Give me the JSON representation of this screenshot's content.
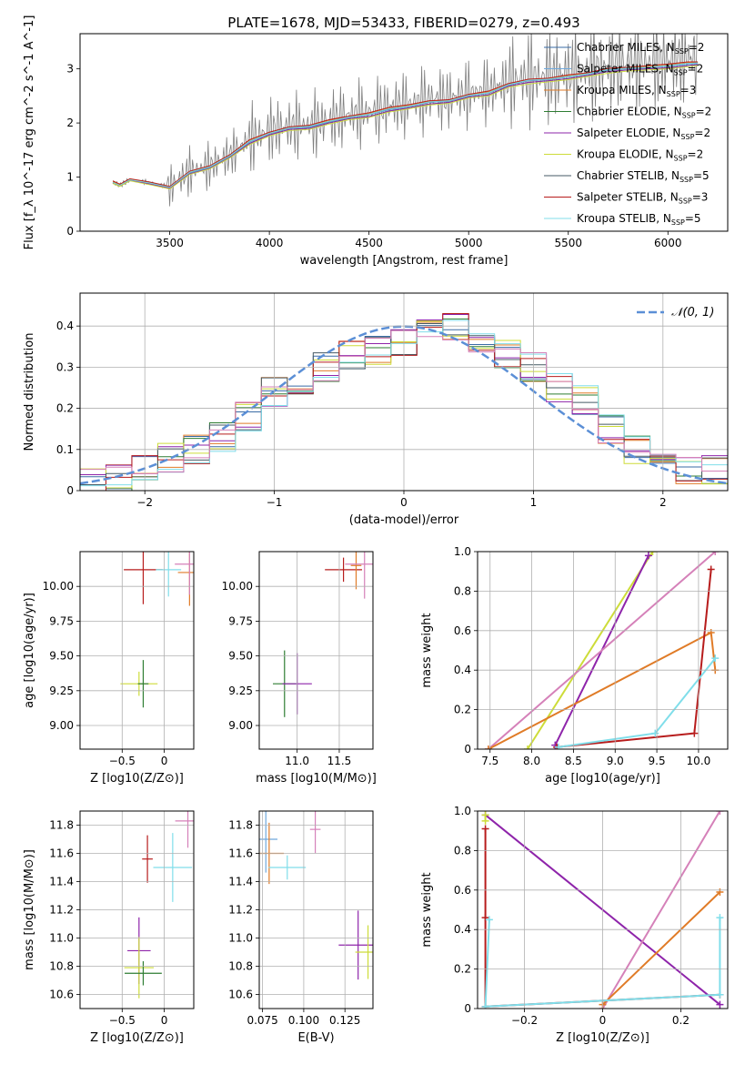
{
  "chart_data": [
    {
      "id": "spectrum",
      "type": "line",
      "title": "PLATE=1678, MJD=53433, FIBERID=0279, z=0.493",
      "xlabel": "wavelength [Angstrom, rest frame]",
      "ylabel": "Flux [f_λ 10^-17 erg cm^-2 s^-1 A^-1]",
      "xlim": [
        3050,
        6300
      ],
      "ylim": [
        0,
        3.65
      ],
      "xticks": [
        3500,
        4000,
        4500,
        5000,
        5500,
        6000
      ],
      "yticks": [
        0,
        1,
        2,
        3
      ],
      "grid": false,
      "legend_position": "top-right",
      "data_color": "#808080",
      "x": [
        3215,
        3250,
        3300,
        3400,
        3500,
        3600,
        3700,
        3800,
        3900,
        4000,
        4100,
        4200,
        4300,
        4400,
        4500,
        4600,
        4700,
        4800,
        4900,
        5000,
        5100,
        5200,
        5300,
        5400,
        5500,
        5600,
        5700,
        5800,
        5900,
        6000,
        6100,
        6150
      ],
      "data_flux": [
        0.9,
        0.85,
        0.95,
        0.9,
        0.82,
        1.1,
        1.2,
        1.4,
        1.7,
        1.85,
        1.95,
        1.95,
        2.05,
        2.15,
        2.2,
        2.3,
        2.35,
        2.45,
        2.45,
        2.55,
        2.6,
        2.75,
        2.85,
        2.85,
        2.9,
        2.95,
        3.05,
        3.1,
        3.1,
        3.15,
        3.2,
        3.2
      ],
      "series": [
        {
          "name": "Chabrier MILES, N_SSP=2",
          "color": "#3a6ba5",
          "values": [
            0.9,
            0.85,
            0.95,
            0.88,
            0.8,
            1.08,
            1.18,
            1.38,
            1.65,
            1.8,
            1.9,
            1.93,
            2.02,
            2.1,
            2.15,
            2.25,
            2.3,
            2.38,
            2.4,
            2.5,
            2.55,
            2.7,
            2.78,
            2.8,
            2.85,
            2.9,
            2.98,
            3.0,
            3.02,
            3.05,
            3.1,
            3.1
          ]
        },
        {
          "name": "Salpeter MILES, N_SSP=2",
          "color": "#6fa8dc",
          "values": [
            0.9,
            0.85,
            0.95,
            0.88,
            0.8,
            1.07,
            1.17,
            1.37,
            1.64,
            1.8,
            1.9,
            1.92,
            2.01,
            2.1,
            2.15,
            2.24,
            2.3,
            2.38,
            2.4,
            2.5,
            2.55,
            2.7,
            2.78,
            2.8,
            2.85,
            2.9,
            2.97,
            3.0,
            3.02,
            3.05,
            3.08,
            3.1
          ]
        },
        {
          "name": "Kroupa MILES, N_SSP=3",
          "color": "#e07b27",
          "values": [
            0.92,
            0.86,
            0.96,
            0.9,
            0.82,
            1.1,
            1.2,
            1.4,
            1.68,
            1.82,
            1.92,
            1.95,
            2.05,
            2.12,
            2.18,
            2.28,
            2.33,
            2.4,
            2.42,
            2.52,
            2.58,
            2.72,
            2.8,
            2.82,
            2.88,
            2.92,
            3.0,
            3.02,
            3.05,
            3.08,
            3.12,
            3.12
          ]
        },
        {
          "name": "Chabrier ELODIE, N_SSP=2",
          "color": "#2e7d32",
          "values": [
            0.9,
            0.84,
            0.94,
            0.87,
            0.79,
            1.06,
            1.16,
            1.36,
            1.62,
            1.78,
            1.88,
            1.9,
            2.0,
            2.08,
            2.12,
            2.22,
            2.28,
            2.35,
            2.38,
            2.48,
            2.52,
            2.68,
            2.75,
            2.78,
            2.82,
            2.88,
            2.95,
            2.98,
            3.0,
            3.02,
            3.06,
            3.08
          ]
        },
        {
          "name": "Salpeter ELODIE, N_SSP=2",
          "color": "#8e24aa",
          "values": [
            0.9,
            0.84,
            0.94,
            0.87,
            0.79,
            1.06,
            1.16,
            1.36,
            1.62,
            1.78,
            1.88,
            1.9,
            2.0,
            2.08,
            2.12,
            2.22,
            2.28,
            2.35,
            2.38,
            2.48,
            2.52,
            2.68,
            2.75,
            2.78,
            2.82,
            2.88,
            2.95,
            2.98,
            3.0,
            3.02,
            3.06,
            3.08
          ]
        },
        {
          "name": "Kroupa ELODIE, N_SSP=2",
          "color": "#cddc39",
          "values": [
            0.88,
            0.83,
            0.93,
            0.86,
            0.78,
            1.05,
            1.15,
            1.35,
            1.6,
            1.76,
            1.86,
            1.88,
            1.98,
            2.06,
            2.1,
            2.2,
            2.26,
            2.33,
            2.36,
            2.46,
            2.5,
            2.66,
            2.72,
            2.76,
            2.8,
            2.86,
            2.92,
            2.96,
            2.98,
            3.0,
            3.04,
            3.06
          ]
        },
        {
          "name": "Chabrier STELIB, N_SSP=5",
          "color": "#455a64",
          "values": [
            0.9,
            0.85,
            0.95,
            0.89,
            0.81,
            1.09,
            1.19,
            1.39,
            1.66,
            1.81,
            1.91,
            1.94,
            2.03,
            2.11,
            2.16,
            2.26,
            2.31,
            2.39,
            2.41,
            2.51,
            2.56,
            2.71,
            2.79,
            2.81,
            2.86,
            2.91,
            2.99,
            3.01,
            3.03,
            3.06,
            3.1,
            3.11
          ]
        },
        {
          "name": "Salpeter STELIB, N_SSP=3",
          "color": "#b71c1c",
          "values": [
            0.93,
            0.87,
            0.97,
            0.91,
            0.83,
            1.11,
            1.21,
            1.41,
            1.69,
            1.83,
            1.93,
            1.96,
            2.06,
            2.13,
            2.19,
            2.29,
            2.34,
            2.41,
            2.43,
            2.53,
            2.59,
            2.73,
            2.81,
            2.83,
            2.89,
            2.93,
            3.01,
            3.03,
            3.06,
            3.09,
            3.13,
            3.13
          ]
        },
        {
          "name": "Kroupa STELIB, N_SSP=5",
          "color": "#80deea",
          "values": [
            0.9,
            0.85,
            0.95,
            0.89,
            0.81,
            1.09,
            1.19,
            1.39,
            1.66,
            1.81,
            1.91,
            1.94,
            2.03,
            2.11,
            2.16,
            2.26,
            2.31,
            2.39,
            2.41,
            2.51,
            2.56,
            2.71,
            2.79,
            2.81,
            2.86,
            2.91,
            2.99,
            3.01,
            3.03,
            3.06,
            3.1,
            3.11
          ]
        }
      ]
    },
    {
      "id": "residuals",
      "type": "line",
      "xlabel": "(data-model)/error",
      "ylabel": "Normed distribution",
      "xlim": [
        -2.5,
        2.5
      ],
      "ylim": [
        0,
        0.48
      ],
      "xticks": [
        -2,
        -1,
        0,
        1,
        2
      ],
      "yticks": [
        0.0,
        0.1,
        0.2,
        0.3,
        0.4
      ],
      "grid": true,
      "legend": [
        "𝒩(0, 1)"
      ],
      "legend_position": "top-right",
      "normal_curve": {
        "mu": 0,
        "sigma": 1,
        "color": "#5b8fd6"
      },
      "histogram": {
        "bin_edges": [
          -2.5,
          -2.3,
          -2.1,
          -1.9,
          -1.7,
          -1.5,
          -1.3,
          -1.1,
          -0.9,
          -0.7,
          -0.5,
          -0.3,
          -0.1,
          0.1,
          0.3,
          0.5,
          0.7,
          0.9,
          1.1,
          1.3,
          1.5,
          1.7,
          1.9,
          2.1,
          2.3,
          2.5
        ],
        "values": [
          0.02,
          0.03,
          0.05,
          0.08,
          0.1,
          0.13,
          0.18,
          0.24,
          0.27,
          0.3,
          0.33,
          0.34,
          0.36,
          0.38,
          0.4,
          0.36,
          0.33,
          0.3,
          0.25,
          0.22,
          0.15,
          0.1,
          0.06,
          0.05,
          0.05
        ]
      }
    },
    {
      "id": "age-vs-Z",
      "type": "scatter",
      "xlabel": "Z [log10(Z/Z⊙)]",
      "ylabel": "age  [log10(age/yr)]",
      "xlim": [
        -1.0,
        0.35
      ],
      "ylim": [
        8.83,
        10.25
      ],
      "xticks": [
        -0.5,
        0.0
      ],
      "yticks": [
        9.0,
        9.25,
        9.5,
        9.75,
        10.0
      ],
      "grid": true,
      "points": [
        {
          "x": 0.3,
          "y": 10.1,
          "color": "#e07b27"
        },
        {
          "x": 0.3,
          "y": 10.16,
          "color": "#d581b9"
        },
        {
          "x": -0.3,
          "y": 9.3,
          "color": "#cddc39"
        },
        {
          "x": -0.25,
          "y": 9.3,
          "color": "#2e7d32"
        },
        {
          "x": -0.25,
          "y": 10.12,
          "color": "#b71c1c"
        },
        {
          "x": 0.05,
          "y": 10.12,
          "color": "#80deea"
        }
      ]
    },
    {
      "id": "age-vs-mass",
      "type": "scatter",
      "xlabel": "mass [log10(M/M⊙)]",
      "ylabel": "",
      "xlim": [
        10.55,
        11.9
      ],
      "ylim": [
        8.83,
        10.25
      ],
      "xticks": [
        11.0,
        11.5
      ],
      "yticks": [
        9.0,
        9.25,
        9.5,
        9.75,
        10.0
      ],
      "grid": true,
      "points": [
        {
          "x": 10.85,
          "y": 9.3,
          "color": "#2e7d32"
        },
        {
          "x": 11.0,
          "y": 9.3,
          "color": "#8e24aa"
        },
        {
          "x": 11.55,
          "y": 10.12,
          "color": "#b71c1c"
        },
        {
          "x": 11.7,
          "y": 10.15,
          "color": "#e07b27"
        },
        {
          "x": 11.8,
          "y": 10.16,
          "color": "#d581b9"
        }
      ]
    },
    {
      "id": "weight-vs-age",
      "type": "line",
      "xlabel": "age  [log10(age/yr)]",
      "ylabel": "mass weight",
      "xlim": [
        7.35,
        10.35
      ],
      "ylim": [
        0.0,
        1.0
      ],
      "xticks": [
        7.5,
        8.0,
        8.5,
        9.0,
        9.5,
        10.0
      ],
      "yticks": [
        0.0,
        0.2,
        0.4,
        0.6,
        0.8,
        1.0
      ],
      "grid": true,
      "series": [
        {
          "color": "#cddc39",
          "x": [
            7.95,
            9.45
          ],
          "y": [
            0.0,
            1.0
          ]
        },
        {
          "color": "#8e24aa",
          "x": [
            8.28,
            9.4
          ],
          "y": [
            0.02,
            0.98
          ]
        },
        {
          "color": "#d581b9",
          "x": [
            7.48,
            10.2
          ],
          "y": [
            0.0,
            1.0
          ]
        },
        {
          "color": "#e07b27",
          "x": [
            7.48,
            10.15,
            10.2
          ],
          "y": [
            0.0,
            0.59,
            0.4
          ]
        },
        {
          "color": "#b71c1c",
          "x": [
            8.3,
            9.95,
            10.15
          ],
          "y": [
            0.01,
            0.08,
            0.91
          ]
        },
        {
          "color": "#80deea",
          "x": [
            8.32,
            9.48,
            10.2
          ],
          "y": [
            0.01,
            0.08,
            0.46
          ]
        }
      ]
    },
    {
      "id": "mass-vs-Z",
      "type": "scatter",
      "xlabel": "Z [log10(Z/Z⊙)]",
      "ylabel": "mass [log10(M/M⊙)]",
      "xlim": [
        -1.0,
        0.35
      ],
      "ylim": [
        10.5,
        11.9
      ],
      "xticks": [
        -0.5,
        0.0
      ],
      "yticks": [
        10.6,
        10.8,
        11.0,
        11.2,
        11.4,
        11.6,
        11.8
      ],
      "grid": true,
      "points": [
        {
          "x": -0.3,
          "y": 10.91,
          "color": "#8e24aa"
        },
        {
          "x": -0.3,
          "y": 10.79,
          "color": "#cddc39"
        },
        {
          "x": -0.25,
          "y": 10.75,
          "color": "#2e7d32"
        },
        {
          "x": -0.2,
          "y": 11.56,
          "color": "#b71c1c"
        },
        {
          "x": 0.1,
          "y": 11.5,
          "color": "#80deea"
        },
        {
          "x": 0.28,
          "y": 11.83,
          "color": "#d581b9"
        }
      ]
    },
    {
      "id": "mass-vs-EBV",
      "type": "scatter",
      "xlabel": "E(B-V)",
      "ylabel": "",
      "xlim": [
        0.073,
        0.142
      ],
      "ylim": [
        10.5,
        11.9
      ],
      "xticks": [
        0.075,
        0.1,
        0.125
      ],
      "yticks": [
        10.6,
        10.8,
        11.0,
        11.2,
        11.4,
        11.6,
        11.8
      ],
      "grid": true,
      "points": [
        {
          "x": 0.077,
          "y": 11.7,
          "color": "#6fa8dc"
        },
        {
          "x": 0.079,
          "y": 11.6,
          "color": "#e07b27"
        },
        {
          "x": 0.09,
          "y": 11.5,
          "color": "#80deea"
        },
        {
          "x": 0.107,
          "y": 11.77,
          "color": "#d581b9"
        },
        {
          "x": 0.133,
          "y": 10.95,
          "color": "#8e24aa"
        },
        {
          "x": 0.139,
          "y": 10.9,
          "color": "#cddc39"
        }
      ]
    },
    {
      "id": "weight-vs-Z",
      "type": "line",
      "xlabel": "Z [log10(Z/Z⊙)]",
      "ylabel": "mass weight",
      "xlim": [
        -0.32,
        0.32
      ],
      "ylim": [
        0.0,
        1.0
      ],
      "xticks": [
        -0.2,
        0.0,
        0.2
      ],
      "yticks": [
        0.0,
        0.2,
        0.4,
        0.6,
        0.8,
        1.0
      ],
      "grid": true,
      "series": [
        {
          "color": "#8e24aa",
          "x": [
            -0.3,
            0.3
          ],
          "y": [
            0.98,
            0.02
          ]
        },
        {
          "color": "#d581b9",
          "x": [
            0.0,
            0.3
          ],
          "y": [
            0.0,
            1.0
          ]
        },
        {
          "color": "#e07b27",
          "x": [
            0.0,
            0.3
          ],
          "y": [
            0.02,
            0.59
          ]
        },
        {
          "color": "#b71c1c",
          "x": [
            -0.3,
            -0.3,
            -0.3,
            0.3
          ],
          "y": [
            0.91,
            0.46,
            0.01,
            0.07
          ]
        },
        {
          "color": "#80deea",
          "x": [
            -0.29,
            -0.3,
            0.3,
            0.3
          ],
          "y": [
            0.45,
            0.01,
            0.07,
            0.46
          ]
        },
        {
          "color": "#cddc39",
          "x": [
            -0.3,
            -0.3
          ],
          "y": [
            0.98,
            0.95
          ]
        }
      ]
    }
  ]
}
